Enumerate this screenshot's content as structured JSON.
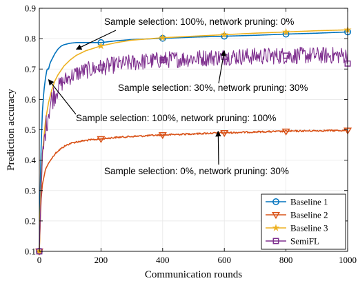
{
  "chart_data": {
    "type": "line",
    "xlabel": "Communication rounds",
    "ylabel": "Prediction accuracy",
    "xlim": [
      0,
      1000
    ],
    "ylim": [
      0.1,
      0.9
    ],
    "xticks": [
      0,
      200,
      400,
      600,
      800,
      1000
    ],
    "yticks": [
      0.1,
      0.2,
      0.3,
      0.4,
      0.5,
      0.6,
      0.7,
      0.8,
      0.9
    ],
    "legend_position": "bottom-right",
    "series": [
      {
        "name": "Baseline 1",
        "color": "#0072BD",
        "marker": "circle",
        "x": [
          0,
          5,
          10,
          15,
          20,
          25,
          30,
          35,
          40,
          50,
          60,
          70,
          80,
          100,
          120,
          150,
          200,
          250,
          300,
          400,
          500,
          600,
          700,
          800,
          900,
          1000
        ],
        "y": [
          0.1,
          0.42,
          0.56,
          0.63,
          0.67,
          0.7,
          0.7,
          0.72,
          0.73,
          0.75,
          0.765,
          0.775,
          0.78,
          0.785,
          0.787,
          0.787,
          0.787,
          0.793,
          0.797,
          0.801,
          0.805,
          0.808,
          0.811,
          0.815,
          0.818,
          0.822
        ]
      },
      {
        "name": "Baseline 2",
        "color": "#D95319",
        "marker": "triangle-down",
        "x": [
          0,
          5,
          10,
          20,
          30,
          40,
          50,
          60,
          80,
          100,
          120,
          150,
          200,
          250,
          300,
          400,
          500,
          600,
          700,
          800,
          900,
          1000
        ],
        "y": [
          0.1,
          0.26,
          0.32,
          0.37,
          0.39,
          0.405,
          0.42,
          0.43,
          0.445,
          0.455,
          0.46,
          0.465,
          0.47,
          0.475,
          0.478,
          0.483,
          0.487,
          0.49,
          0.493,
          0.495,
          0.497,
          0.498
        ]
      },
      {
        "name": "Baseline 3",
        "color": "#EDB120",
        "marker": "star",
        "x": [
          0,
          5,
          10,
          20,
          30,
          40,
          50,
          60,
          80,
          100,
          120,
          150,
          200,
          250,
          300,
          400,
          500,
          600,
          700,
          800,
          900,
          1000
        ],
        "y": [
          0.1,
          0.3,
          0.42,
          0.53,
          0.59,
          0.63,
          0.66,
          0.68,
          0.71,
          0.73,
          0.745,
          0.76,
          0.776,
          0.787,
          0.795,
          0.803,
          0.808,
          0.813,
          0.818,
          0.822,
          0.826,
          0.829
        ]
      },
      {
        "name": "SemiFL",
        "color": "#7E2F8E",
        "marker": "square",
        "x": [
          0,
          5,
          10,
          20,
          30,
          40,
          50,
          60,
          80,
          100,
          120,
          150,
          200,
          250,
          300,
          350,
          400,
          500,
          600,
          700,
          800,
          900,
          1000
        ],
        "y": [
          0.1,
          0.27,
          0.4,
          0.5,
          0.56,
          0.6,
          0.62,
          0.64,
          0.66,
          0.675,
          0.685,
          0.695,
          0.705,
          0.715,
          0.72,
          0.726,
          0.73,
          0.735,
          0.74,
          0.742,
          0.744,
          0.745,
          0.745
        ],
        "noise_amplitude": 0.028
      }
    ],
    "annotations": [
      {
        "text": "Sample selection: 100%, network pruning: 0%",
        "arrow_to": [
          120,
          0.765
        ]
      },
      {
        "text": "Sample selection: 30%, network pruning: 30%",
        "arrow_to": [
          600,
          0.76
        ]
      },
      {
        "text": "Sample selection: 100%, network pruning: 100%",
        "arrow_to": [
          30,
          0.665
        ]
      },
      {
        "text": "Sample selection: 0%, network pruning: 30%",
        "arrow_to": [
          580,
          0.495
        ]
      }
    ]
  }
}
